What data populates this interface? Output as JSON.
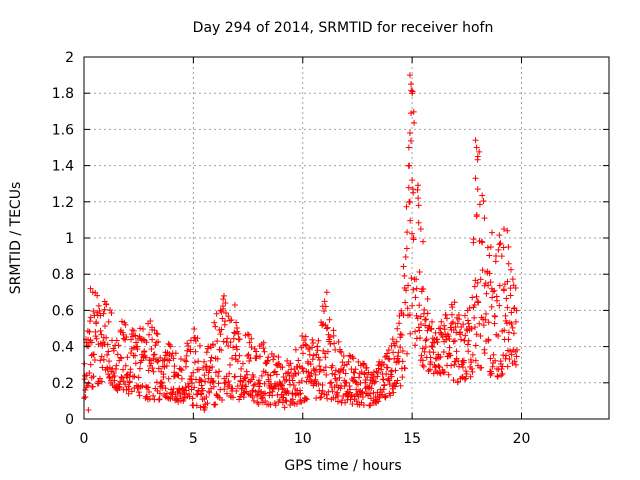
{
  "chart_data": {
    "type": "scatter",
    "title": "Day 294 of 2014, SRMTID for receiver hofn",
    "xlabel": "GPS time / hours",
    "ylabel": "SRMTID / TECUs",
    "xlim": [
      0,
      24
    ],
    "ylim": [
      0,
      2
    ],
    "grid": true,
    "marker": "+",
    "series_color": "#ff0000",
    "x_ticks": [
      0,
      5,
      10,
      15,
      20
    ],
    "x_tick_labels": [
      "0",
      "5",
      "10",
      "15",
      "20"
    ],
    "y_ticks": [
      0,
      0.2,
      0.4,
      0.6,
      0.8,
      1,
      1.2,
      1.4,
      1.6,
      1.8,
      2
    ],
    "y_tick_labels": [
      "0",
      "0.2",
      "0.4",
      "0.6",
      "0.8",
      "1",
      "1.2",
      "1.4",
      "1.6",
      "1.8",
      "2"
    ],
    "envelope": {
      "description": "approximate dense sampled series between 0 and 19.8 h",
      "hours": [
        0,
        0.5,
        1,
        1.5,
        2,
        2.5,
        3,
        3.5,
        4,
        4.5,
        5,
        5.5,
        6,
        6.5,
        7,
        7.5,
        8,
        8.5,
        9,
        9.5,
        10,
        10.5,
        11,
        11.5,
        12,
        12.5,
        13,
        13.5,
        14,
        14.5,
        15,
        15.5,
        16,
        16.5,
        17,
        17.5,
        18,
        18.5,
        19,
        19.5,
        19.8
      ],
      "low": [
        0.1,
        0.18,
        0.22,
        0.16,
        0.14,
        0.13,
        0.1,
        0.1,
        0.08,
        0.1,
        0.06,
        0.06,
        0.08,
        0.12,
        0.1,
        0.12,
        0.08,
        0.08,
        0.05,
        0.06,
        0.1,
        0.12,
        0.1,
        0.1,
        0.08,
        0.08,
        0.06,
        0.1,
        0.12,
        0.16,
        0.45,
        0.28,
        0.25,
        0.25,
        0.2,
        0.22,
        0.25,
        0.22,
        0.22,
        0.28,
        0.3
      ],
      "high": [
        0.48,
        0.72,
        0.7,
        0.58,
        0.52,
        0.5,
        0.56,
        0.48,
        0.4,
        0.35,
        0.55,
        0.32,
        0.58,
        0.7,
        0.55,
        0.5,
        0.45,
        0.4,
        0.35,
        0.32,
        0.48,
        0.45,
        0.7,
        0.45,
        0.38,
        0.32,
        0.3,
        0.32,
        0.4,
        0.6,
        1.9,
        0.85,
        0.48,
        0.62,
        0.65,
        0.6,
        1.55,
        0.9,
        1.05,
        0.85,
        0.84
      ]
    },
    "spikes": [
      {
        "x": 14.9,
        "y": 1.9
      },
      {
        "x": 14.95,
        "y": 1.85
      },
      {
        "x": 15.0,
        "y": 1.8
      },
      {
        "x": 14.95,
        "y": 1.69
      },
      {
        "x": 14.9,
        "y": 1.58
      },
      {
        "x": 14.85,
        "y": 1.5
      },
      {
        "x": 15.0,
        "y": 1.32
      },
      {
        "x": 15.05,
        "y": 1.25
      },
      {
        "x": 14.9,
        "y": 1.2
      },
      {
        "x": 15.3,
        "y": 1.18
      },
      {
        "x": 15.4,
        "y": 1.05
      },
      {
        "x": 15.5,
        "y": 0.98
      },
      {
        "x": 17.9,
        "y": 1.54
      },
      {
        "x": 17.95,
        "y": 1.5
      },
      {
        "x": 18.0,
        "y": 1.45
      },
      {
        "x": 17.9,
        "y": 1.33
      },
      {
        "x": 18.0,
        "y": 1.27
      },
      {
        "x": 17.95,
        "y": 1.12
      },
      {
        "x": 19.2,
        "y": 1.05
      },
      {
        "x": 19.35,
        "y": 1.04
      },
      {
        "x": 19.4,
        "y": 0.95
      },
      {
        "x": 18.6,
        "y": 0.95
      },
      {
        "x": 18.65,
        "y": 1.03
      },
      {
        "x": 19.1,
        "y": 0.9
      },
      {
        "x": 0.3,
        "y": 0.72
      },
      {
        "x": 0.4,
        "y": 0.7
      },
      {
        "x": 6.4,
        "y": 0.68
      },
      {
        "x": 6.9,
        "y": 0.63
      },
      {
        "x": 11.1,
        "y": 0.7
      },
      {
        "x": 11.0,
        "y": 0.65
      },
      {
        "x": 5.5,
        "y": 0.05
      },
      {
        "x": 0.2,
        "y": 0.05
      }
    ]
  }
}
